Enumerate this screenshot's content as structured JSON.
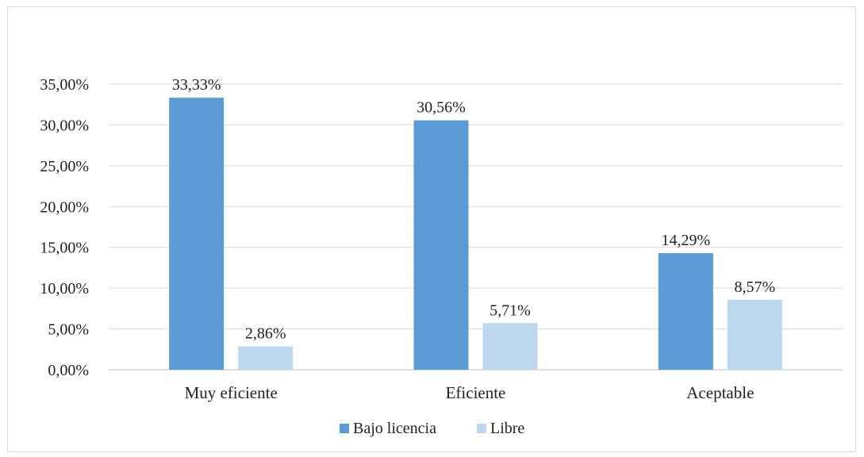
{
  "chart_data": {
    "type": "bar",
    "categories": [
      "Muy eficiente",
      "Eficiente",
      "Aceptable"
    ],
    "series": [
      {
        "name": "Bajo licencia",
        "values": [
          33.33,
          30.56,
          14.29
        ],
        "labels": [
          "33,33%",
          "30,56%",
          "14,29%"
        ],
        "color": "#5b9bd5"
      },
      {
        "name": "Libre",
        "values": [
          2.86,
          5.71,
          8.57
        ],
        "labels": [
          "2,86%",
          "5,71%",
          "8,57%"
        ],
        "color": "#bdd7ee"
      }
    ],
    "y_ticks": [
      "0,00%",
      "5,00%",
      "10,00%",
      "15,00%",
      "20,00%",
      "25,00%",
      "30,00%",
      "35,00%"
    ],
    "ylim": [
      0,
      35
    ],
    "grid": true,
    "legend": "bottom"
  }
}
